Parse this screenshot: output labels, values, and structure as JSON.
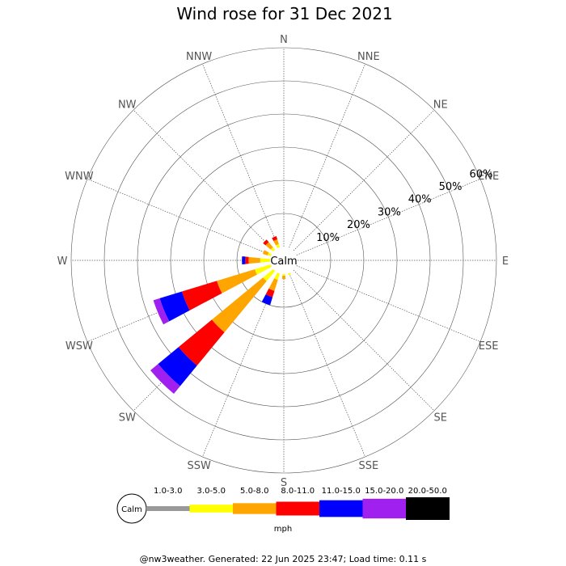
{
  "chart_data": {
    "type": "windrose",
    "title": "Wind rose for 31 Dec 2021",
    "directions": [
      "N",
      "NNE",
      "NE",
      "ENE",
      "E",
      "ESE",
      "SE",
      "SSE",
      "S",
      "SSW",
      "SW",
      "WSW",
      "W",
      "WNW",
      "NW",
      "NNW"
    ],
    "rings": [
      10,
      20,
      30,
      40,
      50,
      60
    ],
    "ring_labels": [
      "10%",
      "20%",
      "30%",
      "40%",
      "50%",
      "60%"
    ],
    "max_percent": 60,
    "calm_label": "Calm",
    "unit": "mph",
    "legend_calm_label": "Calm",
    "speed_bins": [
      {
        "label": "1.0-3.0",
        "color": "#999999"
      },
      {
        "label": "3.0-5.0",
        "color": "#ffff00"
      },
      {
        "label": "5.0-8.0",
        "color": "#ffa500"
      },
      {
        "label": "8.0-11.0",
        "color": "#ff0000"
      },
      {
        "label": "11.0-15.0",
        "color": "#0000ff"
      },
      {
        "label": "15.0-20.0",
        "color": "#a020f0"
      },
      {
        "label": "20.0-50.0",
        "color": "#000000"
      }
    ],
    "series": [
      {
        "direction": "SSE",
        "values": [
          0,
          0.5,
          0,
          0,
          0,
          0,
          0
        ]
      },
      {
        "direction": "S",
        "values": [
          0,
          0.5,
          1,
          0,
          0,
          0,
          0
        ]
      },
      {
        "direction": "SSW",
        "values": [
          0,
          2,
          3.5,
          2,
          2.5,
          0,
          0
        ]
      },
      {
        "direction": "SW",
        "values": [
          0,
          4,
          20,
          13,
          8,
          3,
          0
        ]
      },
      {
        "direction": "WSW",
        "values": [
          0,
          5,
          12,
          11,
          7,
          2,
          0
        ]
      },
      {
        "direction": "W",
        "values": [
          0,
          3,
          3.5,
          1,
          1,
          0,
          0
        ]
      },
      {
        "direction": "WNW",
        "values": [
          0,
          1,
          1.5,
          0,
          0,
          0,
          0
        ]
      },
      {
        "direction": "NW",
        "values": [
          0,
          1,
          2,
          1,
          0,
          0,
          0
        ]
      },
      {
        "direction": "NNW",
        "values": [
          0,
          1,
          1.5,
          1,
          0,
          0,
          0
        ]
      }
    ]
  },
  "footer": "@nw3weather. Generated: 22 Jun 2025 23:47; Load time: 0.11 s"
}
